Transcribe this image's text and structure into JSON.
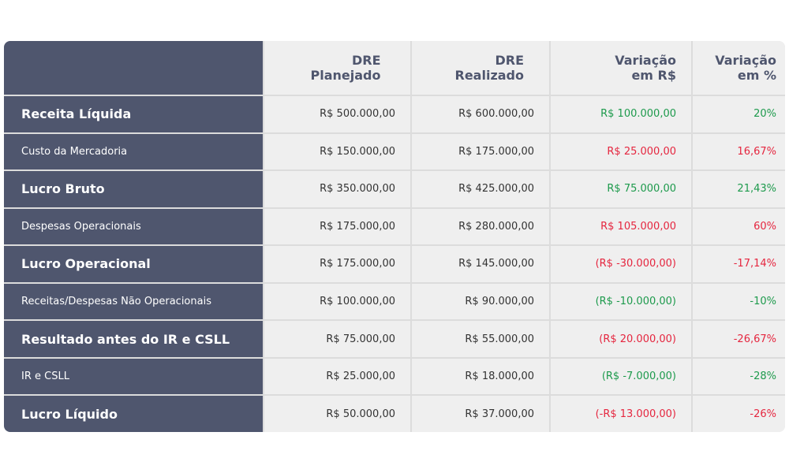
{
  "table": {
    "header": [
      "DRE Planejado",
      "DRE Realizado",
      "Variação em R$",
      "Variação em %"
    ],
    "rows": [
      {
        "label": "Receita Líquida",
        "bold": true,
        "color": "#1d9a4c",
        "cells": [
          "R$ 500.000,00",
          "R$ 600.000,00",
          "R$ 100.000,00",
          "20%"
        ]
      },
      {
        "label": "Custo da Mercadoria",
        "bold": false,
        "color": "#e5263f",
        "cells": [
          "R$ 150.000,00",
          "R$ 175.000,00",
          "R$ 25.000,00",
          "16,67%"
        ]
      },
      {
        "label": "Lucro Bruto",
        "bold": true,
        "color": "#1d9a4c",
        "cells": [
          "R$ 350.000,00",
          "R$ 425.000,00",
          "R$ 75.000,00",
          "21,43%"
        ]
      },
      {
        "label": "Despesas Operacionais",
        "bold": false,
        "color": "#e5263f",
        "cells": [
          "R$ 175.000,00",
          "R$ 280.000,00",
          "R$ 105.000,00",
          "60%"
        ]
      },
      {
        "label": "Lucro Operacional",
        "bold": true,
        "color": "#e5263f",
        "cells": [
          "R$ 175.000,00",
          "R$ 145.000,00",
          "(R$ -30.000,00)",
          "-17,14%"
        ]
      },
      {
        "label": "Receitas/Despesas Não Operacionais",
        "bold": false,
        "color": "#1d9a4c",
        "cells": [
          "R$ 100.000,00",
          "R$ 90.000,00",
          "(R$ -10.000,00)",
          "-10%"
        ]
      },
      {
        "label": "Resultado antes do IR e CSLL",
        "bold": true,
        "color": "#e5263f",
        "cells": [
          "R$ 75.000,00",
          "R$ 55.000,00",
          "(R$ 20.000,00)",
          "-26,67%"
        ]
      },
      {
        "label": "IR e CSLL",
        "bold": false,
        "color": "#1d9a4c",
        "cells": [
          "R$ 25.000,00",
          "R$ 18.000,00",
          "(R$ -7.000,00)",
          "-28%"
        ]
      },
      {
        "label": "Lucro Líquido",
        "bold": true,
        "color": "#e5263f",
        "cells": [
          "R$ 50.000,00",
          "R$ 37.000,00",
          "(-R$ 13.000,00)",
          "-26%"
        ]
      }
    ]
  }
}
